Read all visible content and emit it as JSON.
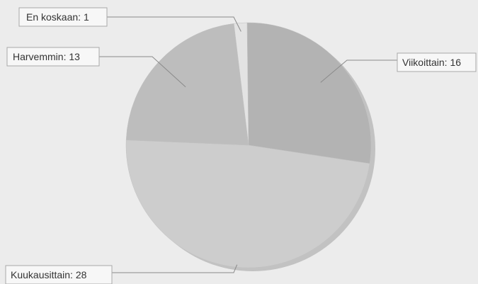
{
  "chart_data": {
    "type": "pie",
    "title": "",
    "slices": [
      {
        "label": "Viikoittain",
        "value": 16,
        "color": "#b3b3b3",
        "text": "Viikoittain: 16"
      },
      {
        "label": "Kuukausittain",
        "value": 28,
        "color": "#cdcdcd",
        "text": "Kuukausittain: 28"
      },
      {
        "label": "Harvemmin",
        "value": 13,
        "color": "#bdbdbd",
        "text": "Harvemmin: 13"
      },
      {
        "label": "En koskaan",
        "value": 1,
        "color": "#e3e3e3",
        "text": "En koskaan: 1"
      }
    ],
    "legend": "none",
    "labels": "callouts"
  },
  "colors": {
    "background": "#ececec",
    "shadow": "#a0a0a0"
  }
}
